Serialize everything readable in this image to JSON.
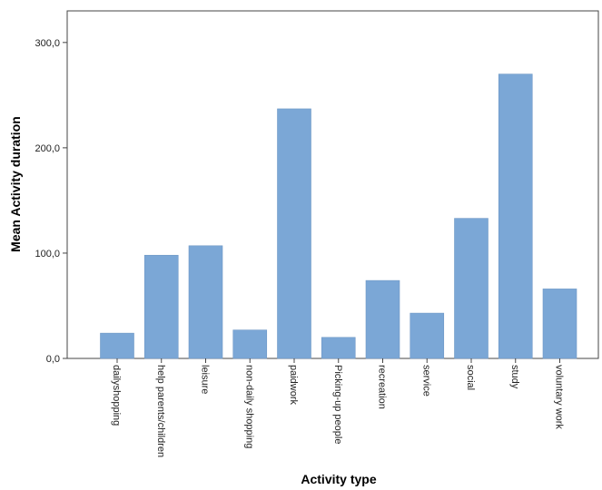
{
  "chart_data": {
    "type": "bar",
    "title": "",
    "xlabel": "Activity type",
    "ylabel": "Mean Activity duration",
    "ylim": [
      0,
      330
    ],
    "yticks": [
      0,
      100,
      200,
      300
    ],
    "ytick_labels": [
      "0,0",
      "100,0",
      "200,0",
      "300,0"
    ],
    "grid": false,
    "bar_color": "#7ba7d6",
    "bar_edge_color": "#6f98c5",
    "categories": [
      "dailyshopping",
      "help parents/children",
      "leisure",
      "non-daily shopping",
      "paidwork",
      "Picking-up people",
      "recreation",
      "service",
      "social",
      "study",
      "voluntary work"
    ],
    "values": [
      24,
      98,
      107,
      27,
      237,
      20,
      74,
      43,
      133,
      270,
      66
    ]
  }
}
